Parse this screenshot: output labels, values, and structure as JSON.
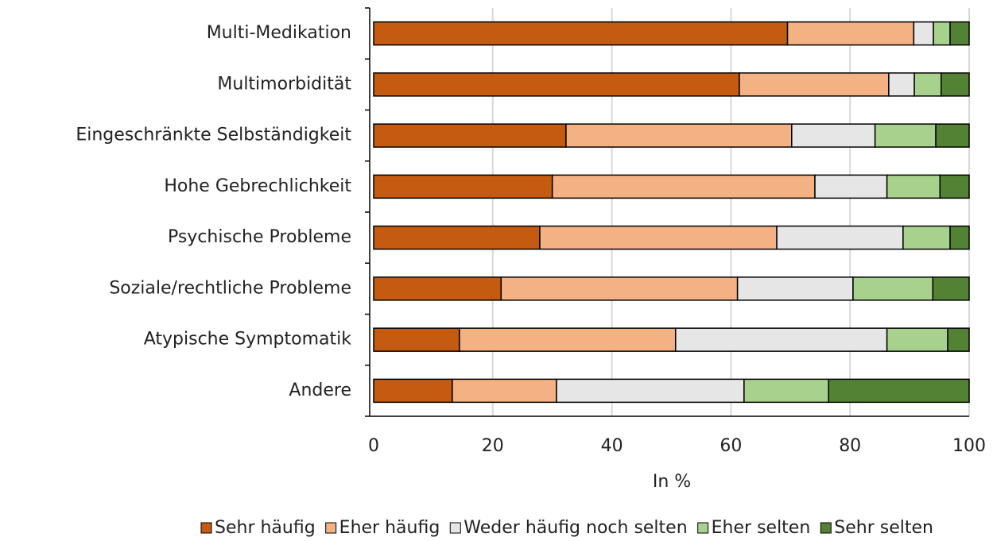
{
  "chart_data": {
    "type": "stacked-bar-horizontal",
    "categories": [
      "Multi-Medikation",
      "Multimorbidität",
      "Eingeschränkte Selbständigkeit",
      "Hohe Gebrechlichkeit",
      "Psychische Probleme",
      "Soziale/rechtliche Probleme",
      "Atypische Symptomatik",
      "Andere"
    ],
    "series": [
      {
        "name": "Sehr häufig",
        "color": "#c55a11",
        "values": [
          69.5,
          61.4,
          32.3,
          30.0,
          27.9,
          21.4,
          14.4,
          13.2
        ]
      },
      {
        "name": "Eher häufig",
        "color": "#f4b183",
        "values": [
          21.2,
          25.1,
          37.9,
          44.1,
          39.8,
          39.7,
          36.3,
          17.5
        ]
      },
      {
        "name": "Weder häufig noch selten",
        "color": "#e7e6e6",
        "values": [
          3.3,
          4.3,
          14.0,
          12.1,
          21.2,
          19.4,
          35.5,
          31.5
        ]
      },
      {
        "name": "Eher selten",
        "color": "#a9d18e",
        "values": [
          2.8,
          4.5,
          10.2,
          8.9,
          7.9,
          13.4,
          10.2,
          14.2
        ]
      },
      {
        "name": "Sehr selten",
        "color": "#548235",
        "values": [
          3.2,
          4.7,
          5.6,
          4.9,
          3.2,
          6.1,
          3.6,
          23.6
        ]
      }
    ],
    "xlabel": "In %",
    "xlim": [
      0,
      100
    ],
    "xticks": [
      0,
      20,
      40,
      60,
      80,
      100
    ],
    "grid": true,
    "legend": "bottom"
  }
}
